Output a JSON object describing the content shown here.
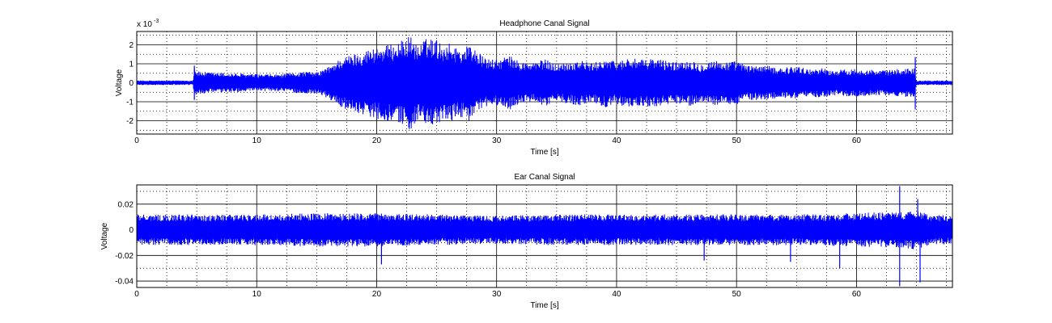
{
  "chart_data": [
    {
      "type": "line",
      "title": "Headphone Canal Signal",
      "xlabel": "Time [s]",
      "ylabel": "Voltage",
      "yexponent": "x 10",
      "yexponent_power": "-3",
      "xlim": [
        0,
        68
      ],
      "ylim": [
        -2.7,
        2.7
      ],
      "xticks": [
        0,
        10,
        20,
        30,
        40,
        50,
        60
      ],
      "yticks": [
        -2,
        -1,
        0,
        1,
        2
      ],
      "xminor": [
        2.5,
        5,
        7.5,
        12.5,
        15,
        17.5,
        22.5,
        25,
        27.5,
        32.5,
        35,
        37.5,
        42.5,
        45,
        47.5,
        52.5,
        55,
        57.5,
        62.5,
        65,
        67.5
      ],
      "yminor": [
        -2.5,
        -1.5,
        -0.5,
        0.5,
        1.5,
        2.5
      ],
      "grid": true,
      "color": "#0000ff",
      "series": [
        {
          "envelope": {
            "t": [
              0,
              4.7,
              4.8,
              5,
              6,
              8,
              10,
              12,
              14,
              15,
              15.5,
              16,
              17,
              18,
              19,
              20,
              21,
              22,
              22.8,
              23.5,
              24,
              24.8,
              25.5,
              26,
              27,
              27.8,
              28.5,
              29,
              30,
              31,
              32,
              33,
              34,
              35,
              36,
              37,
              38,
              39,
              40,
              41,
              42,
              43,
              44,
              45,
              46,
              47,
              48,
              49,
              50,
              51,
              52,
              53,
              54,
              55,
              56,
              57,
              58,
              59,
              60,
              61,
              62,
              63,
              64,
              64.8,
              65,
              68
            ],
            "amp": [
              0.12,
              0.12,
              0.9,
              0.6,
              0.55,
              0.5,
              0.45,
              0.45,
              0.6,
              0.55,
              0.7,
              0.85,
              1.3,
              1.5,
              1.7,
              1.9,
              2.0,
              2.2,
              2.5,
              1.9,
              2.3,
              2.4,
              2.0,
              2.1,
              1.8,
              2.05,
              1.6,
              1.3,
              1.2,
              1.45,
              1.1,
              1.05,
              1.25,
              1.0,
              1.1,
              1.2,
              1.0,
              1.3,
              1.1,
              1.35,
              1.2,
              1.3,
              1.2,
              1.1,
              1.25,
              1.0,
              1.2,
              1.1,
              1.15,
              0.9,
              0.95,
              0.85,
              0.8,
              0.9,
              0.7,
              0.8,
              0.65,
              0.7,
              0.75,
              0.7,
              0.65,
              0.7,
              0.75,
              0.8,
              0.12,
              0.12
            ]
          },
          "spikes": [
            {
              "t": 4.8,
              "v": 0.9
            },
            {
              "t": 4.8,
              "v": -0.9
            },
            {
              "t": 64.9,
              "v": 1.35
            },
            {
              "t": 64.9,
              "v": -1.4
            }
          ]
        }
      ]
    },
    {
      "type": "line",
      "title": "Ear Canal Signal",
      "xlabel": "Time [s]",
      "ylabel": "Voltage",
      "xlim": [
        0,
        68
      ],
      "ylim": [
        -0.045,
        0.035
      ],
      "xticks": [
        0,
        10,
        20,
        30,
        40,
        50,
        60
      ],
      "yticks": [
        -0.04,
        -0.02,
        0,
        0.02
      ],
      "ytick_labels": [
        "-0.04",
        "-0.02",
        "0",
        "0.02"
      ],
      "xminor": [
        2.5,
        5,
        7.5,
        12.5,
        15,
        17.5,
        22.5,
        25,
        27.5,
        32.5,
        35,
        37.5,
        42.5,
        45,
        47.5,
        52.5,
        55,
        57.5,
        62.5,
        65,
        67.5
      ],
      "yminor": [
        -0.03,
        -0.01,
        0.01,
        0.03
      ],
      "grid": true,
      "color": "#0000ff",
      "series": [
        {
          "envelope": {
            "t": [
              0,
              5,
              10,
              15,
              20,
              25,
              30,
              35,
              40,
              45,
              50,
              55,
              60,
              63,
              64,
              65,
              66,
              68
            ],
            "amp": [
              0.012,
              0.012,
              0.012,
              0.013,
              0.013,
              0.012,
              0.011,
              0.012,
              0.012,
              0.012,
              0.012,
              0.012,
              0.013,
              0.014,
              0.014,
              0.016,
              0.012,
              0.011
            ]
          },
          "spikes": [
            {
              "t": 63.6,
              "v": 0.034
            },
            {
              "t": 63.6,
              "v": -0.044
            },
            {
              "t": 65.3,
              "v": -0.041
            },
            {
              "t": 65.1,
              "v": 0.024
            },
            {
              "t": 58.6,
              "v": -0.03
            },
            {
              "t": 20.4,
              "v": -0.027
            },
            {
              "t": 54.5,
              "v": -0.025
            },
            {
              "t": 47.3,
              "v": -0.024
            }
          ]
        }
      ]
    }
  ]
}
